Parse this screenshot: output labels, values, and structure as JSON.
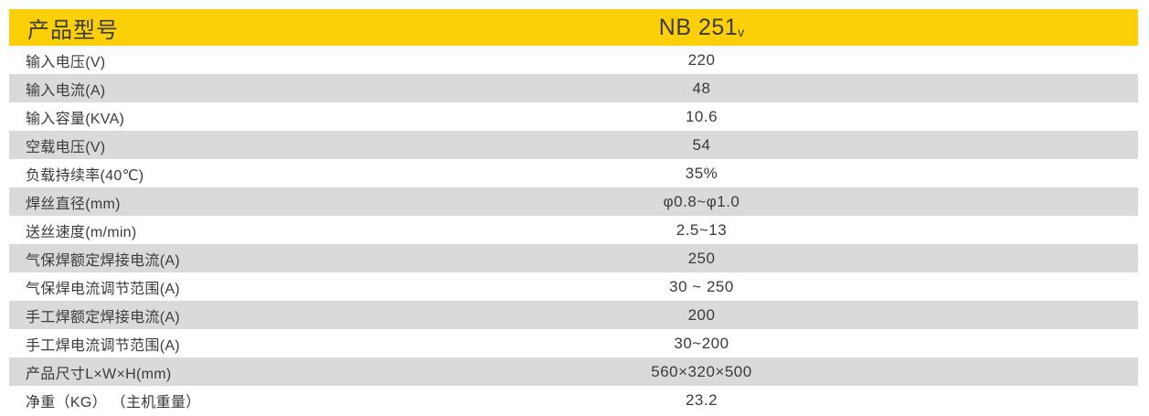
{
  "table": {
    "colors": {
      "header_bg": "#FCD008",
      "stripe_bg": "#D9DADC",
      "text": "#3B3B3B"
    },
    "header": {
      "label": "产品型号",
      "model": "NB 251",
      "model_suffix": "v"
    },
    "rows": [
      {
        "label": "输入电压(V)",
        "value": "220"
      },
      {
        "label": "输入电流(A)",
        "value": "48"
      },
      {
        "label": "输入容量(KVA)",
        "value": "10.6"
      },
      {
        "label": "空载电压(V)",
        "value": "54"
      },
      {
        "label": "负载持续率(40℃)",
        "value": "35%"
      },
      {
        "label": "焊丝直径(mm)",
        "value": "φ0.8~φ1.0"
      },
      {
        "label": "送丝速度(m/min)",
        "value": "2.5~13"
      },
      {
        "label": "气保焊额定焊接电流(A)",
        "value": "250"
      },
      {
        "label": "气保焊电流调节范围(A)",
        "value": "30 ~ 250"
      },
      {
        "label": "手工焊额定焊接电流(A)",
        "value": "200"
      },
      {
        "label": "手工焊电流调节范围(A)",
        "value": "30~200"
      },
      {
        "label": "产品尺寸L×W×H(mm)",
        "value": "560×320×500"
      },
      {
        "label": "净重（KG） （主机重量）",
        "value": "23.2"
      }
    ]
  }
}
